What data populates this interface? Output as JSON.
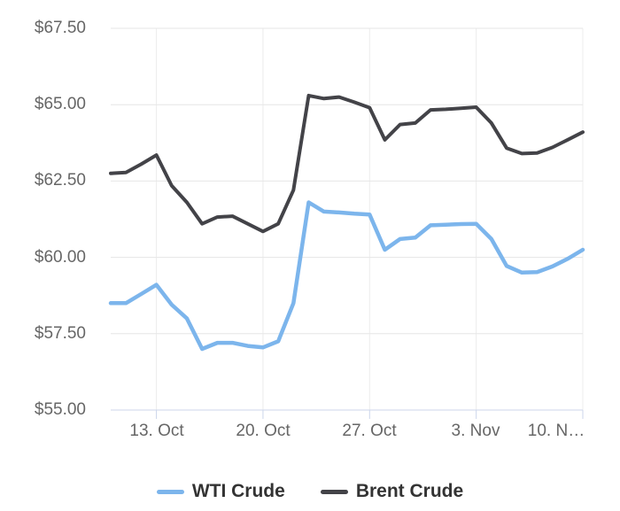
{
  "chart_data": {
    "type": "line",
    "title": "",
    "xlabel": "",
    "ylabel": "",
    "ylim": [
      55,
      67.5
    ],
    "grid": true,
    "legend_position": "bottom-center",
    "y_axis": {
      "tick_values": [
        67.5,
        65,
        62.5,
        60,
        57.5,
        55
      ],
      "labels": [
        "$67.50",
        "$65.00",
        "$62.50",
        "$60.00",
        "$57.50",
        "$55.00"
      ]
    },
    "x_axis": {
      "tick_labels": [
        "13. Oct",
        "20. Oct",
        "27. Oct",
        "3. Nov",
        "10. N…"
      ],
      "tick_indices": [
        3,
        10,
        17,
        24,
        31
      ]
    },
    "dates": [
      "10. Oct",
      "11. Oct",
      "12. Oct",
      "13. Oct",
      "14. Oct",
      "15. Oct",
      "16. Oct",
      "17. Oct",
      "18. Oct",
      "19. Oct",
      "20. Oct",
      "21. Oct",
      "22. Oct",
      "23. Oct",
      "24. Oct",
      "25. Oct",
      "26. Oct",
      "27. Oct",
      "28. Oct",
      "29. Oct",
      "30. Oct",
      "31. Oct",
      "1. Nov",
      "2. Nov",
      "3. Nov",
      "4. Nov",
      "5. Nov",
      "6. Nov",
      "7. Nov",
      "8. Nov",
      "9. Nov",
      "10. Nov"
    ],
    "series": [
      {
        "name": "WTI Crude",
        "color": "#7cb5ec",
        "stroke_width": 4.5,
        "values": [
          58.5,
          58.5,
          58.8,
          59.1,
          58.45,
          58.0,
          57.0,
          57.2,
          57.2,
          57.1,
          57.05,
          57.25,
          58.5,
          61.8,
          61.5,
          61.47,
          61.43,
          61.4,
          60.25,
          60.6,
          60.65,
          61.05,
          61.07,
          61.09,
          61.1,
          60.6,
          59.72,
          59.5,
          59.52,
          59.7,
          59.95,
          60.25
        ]
      },
      {
        "name": "Brent Crude",
        "color": "#434348",
        "stroke_width": 4,
        "values": [
          62.75,
          62.78,
          63.05,
          63.35,
          62.35,
          61.8,
          61.1,
          61.32,
          61.35,
          61.1,
          60.85,
          61.1,
          62.2,
          65.3,
          65.2,
          65.25,
          65.08,
          64.9,
          63.85,
          64.35,
          64.4,
          64.83,
          64.85,
          64.88,
          64.92,
          64.4,
          63.58,
          63.4,
          63.42,
          63.6,
          63.85,
          64.1
        ]
      }
    ],
    "colors": {
      "grid_horizontal": "#e6e6e6",
      "grid_vertical": "#ececec",
      "axis_line": "#ccd6eb",
      "axis_label": "#666666",
      "legend_text": "#333333",
      "background": "#ffffff"
    }
  }
}
